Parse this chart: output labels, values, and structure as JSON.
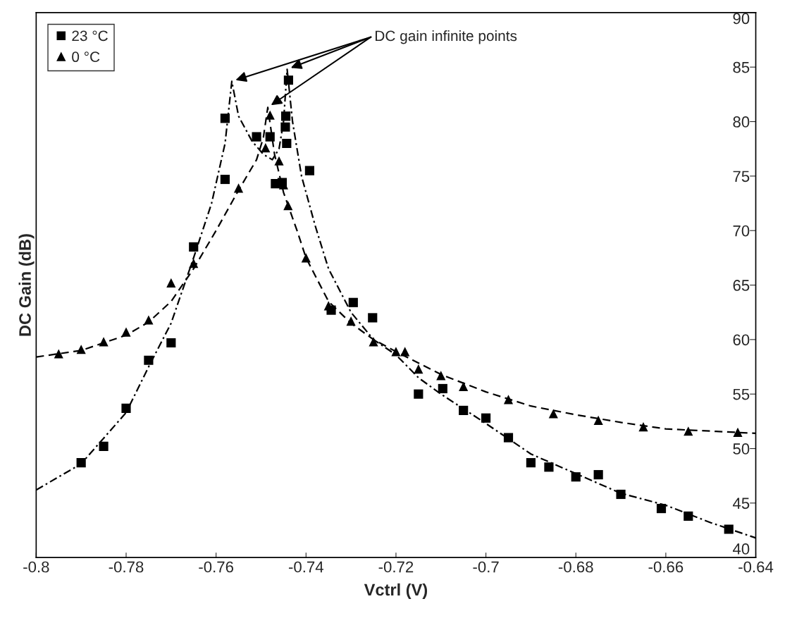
{
  "chart_data": {
    "type": "scatter",
    "xlabel": "Vctrl (V)",
    "ylabel": "DC Gain (dB)",
    "xlim": [
      -0.8,
      -0.64
    ],
    "xticks": [
      -0.8,
      -0.78,
      -0.76,
      -0.74,
      -0.72,
      -0.7,
      -0.68,
      -0.66,
      -0.64
    ],
    "ylim": [
      40,
      90
    ],
    "yticks": [
      40,
      45,
      50,
      55,
      60,
      65,
      70,
      75,
      80,
      85,
      90
    ],
    "grid": false,
    "legend": "top left",
    "annotations": [
      "DC gain infinite points"
    ],
    "series": [
      {
        "name": "23 °C",
        "marker": "square",
        "color": "#000000",
        "x": [
          -0.79,
          -0.785,
          -0.78,
          -0.775,
          -0.77,
          -0.765,
          -0.758,
          -0.758,
          -0.751,
          -0.748,
          -0.7468,
          -0.7453,
          -0.7443,
          -0.7446,
          -0.7445,
          -0.7439,
          -0.7392,
          -0.7344,
          -0.7295,
          -0.7252,
          -0.715,
          -0.7096,
          -0.705,
          -0.7,
          -0.695,
          -0.69,
          -0.686,
          -0.68,
          -0.675,
          -0.67,
          -0.661,
          -0.655,
          -0.646
        ],
        "values": [
          48.7,
          50.2,
          53.7,
          58.1,
          59.7,
          68.5,
          74.7,
          80.3,
          78.6,
          78.6,
          74.3,
          74.4,
          78.0,
          79.5,
          80.5,
          83.8,
          75.5,
          62.7,
          63.4,
          62.0,
          55.0,
          55.5,
          53.5,
          52.8,
          51.0,
          48.7,
          48.3,
          47.4,
          47.6,
          45.8,
          44.5,
          43.8,
          42.6
        ]
      },
      {
        "name": "0 °C",
        "marker": "triangle",
        "color": "#000000",
        "x": [
          -0.795,
          -0.79,
          -0.785,
          -0.78,
          -0.775,
          -0.77,
          -0.765,
          -0.755,
          -0.749,
          -0.748,
          -0.746,
          -0.745,
          -0.744,
          -0.74,
          -0.735,
          -0.73,
          -0.725,
          -0.72,
          -0.718,
          -0.715,
          -0.71,
          -0.705,
          -0.695,
          -0.685,
          -0.675,
          -0.665,
          -0.655,
          -0.644
        ],
        "values": [
          58.7,
          59.1,
          59.8,
          60.7,
          61.8,
          65.2,
          67.0,
          73.9,
          77.6,
          80.6,
          76.4,
          74.2,
          72.3,
          67.5,
          63.1,
          61.7,
          59.8,
          58.9,
          58.9,
          57.3,
          56.7,
          55.7,
          54.5,
          53.2,
          52.6,
          52.0,
          51.6,
          51.5
        ]
      },
      {
        "type": "line",
        "line_style": "dotted",
        "color": "#000000",
        "x": [
          -0.8,
          -0.79,
          -0.78,
          -0.775,
          -0.77,
          -0.765,
          -0.761,
          -0.758,
          -0.7565,
          -0.755,
          -0.752,
          -0.7495,
          -0.7475,
          -0.746,
          -0.745,
          -0.7442,
          -0.743,
          -0.741,
          -0.738,
          -0.735,
          -0.73,
          -0.725,
          -0.72,
          -0.715,
          -0.71,
          -0.7,
          -0.69,
          -0.68,
          -0.67,
          -0.66,
          -0.65,
          -0.64
        ],
        "values": [
          46.2,
          48.6,
          53.3,
          57.5,
          61.5,
          67.5,
          72.5,
          78.0,
          83.7,
          80.5,
          78.2,
          77.0,
          76.5,
          77.5,
          80.0,
          84.8,
          80.0,
          75.0,
          70.5,
          66.5,
          62.5,
          60.0,
          58.6,
          56.5,
          55.0,
          52.3,
          49.5,
          47.7,
          45.9,
          44.8,
          43.2,
          41.8
        ]
      },
      {
        "type": "line",
        "line_style": "dashed",
        "color": "#000000",
        "x": [
          -0.8,
          -0.79,
          -0.78,
          -0.775,
          -0.77,
          -0.765,
          -0.76,
          -0.755,
          -0.751,
          -0.7495,
          -0.7485,
          -0.747,
          -0.745,
          -0.742,
          -0.74,
          -0.735,
          -0.73,
          -0.725,
          -0.72,
          -0.71,
          -0.7,
          -0.69,
          -0.68,
          -0.67,
          -0.66,
          -0.65,
          -0.64
        ],
        "values": [
          58.4,
          59.0,
          60.4,
          61.6,
          63.5,
          66.5,
          70.0,
          73.7,
          76.5,
          78.5,
          81.3,
          77.0,
          73.5,
          70.0,
          67.5,
          63.5,
          61.5,
          60.0,
          58.9,
          56.8,
          55.2,
          53.9,
          53.1,
          52.4,
          51.8,
          51.6,
          51.4
        ]
      }
    ]
  }
}
